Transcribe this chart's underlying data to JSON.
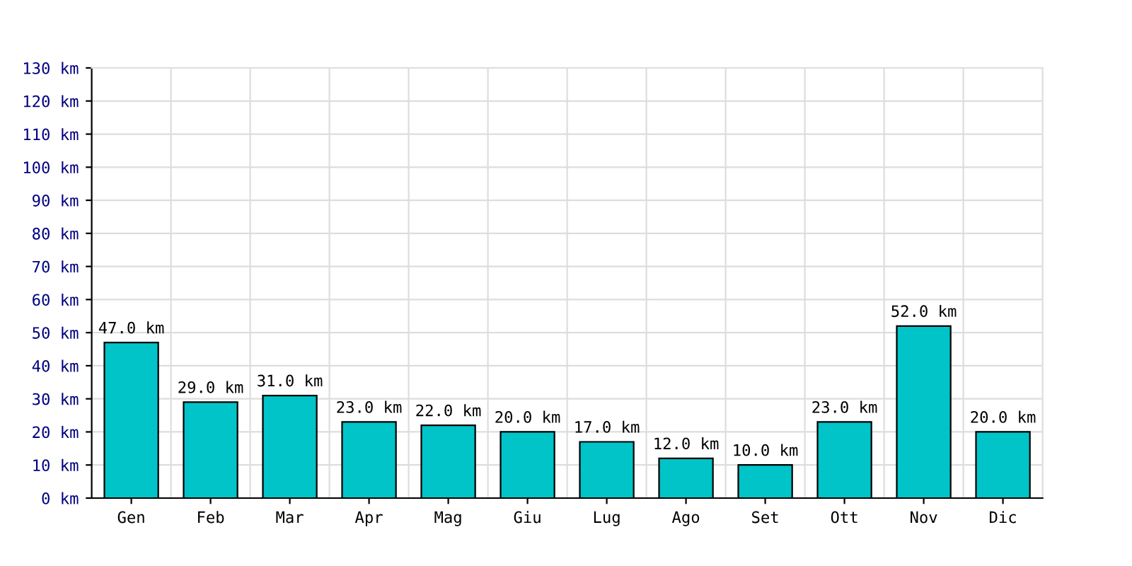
{
  "chart_data": {
    "type": "bar",
    "categories": [
      "Gen",
      "Feb",
      "Mar",
      "Apr",
      "Mag",
      "Giu",
      "Lug",
      "Ago",
      "Set",
      "Ott",
      "Nov",
      "Dic"
    ],
    "values": [
      47,
      29,
      31,
      23,
      22,
      20,
      17,
      12,
      10,
      23,
      52,
      20
    ],
    "value_labels": [
      "47.0 km",
      "29.0 km",
      "31.0 km",
      "23.0 km",
      "22.0 km",
      "20.0 km",
      "17.0 km",
      "12.0 km",
      "10.0 km",
      "23.0 km",
      "52.0 km",
      "20.0 km"
    ],
    "color": "#00c4c8",
    "ylim": [
      0,
      130
    ],
    "yticks": [
      {
        "value": 0,
        "label": "0 km"
      },
      {
        "value": 10,
        "label": "10 km"
      },
      {
        "value": 20,
        "label": "20 km"
      },
      {
        "value": 30,
        "label": "30 km"
      },
      {
        "value": 40,
        "label": "40 km"
      },
      {
        "value": 50,
        "label": "50 km"
      },
      {
        "value": 60,
        "label": "60 km"
      },
      {
        "value": 70,
        "label": "70 km"
      },
      {
        "value": 80,
        "label": "80 km"
      },
      {
        "value": 90,
        "label": "90 km"
      },
      {
        "value": 100,
        "label": "100 km"
      },
      {
        "value": 110,
        "label": "110 km"
      },
      {
        "value": 120,
        "label": "120 km"
      },
      {
        "value": 130,
        "label": "130 km"
      }
    ],
    "grid": true
  }
}
